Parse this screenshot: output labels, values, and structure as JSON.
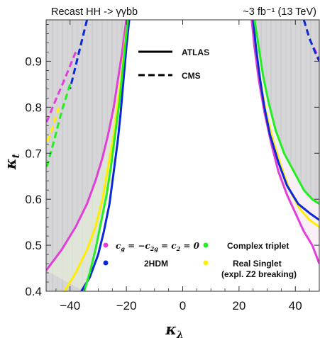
{
  "chart_data": {
    "type": "line",
    "title_left": "Recast HH -> γγbb",
    "title_right": "~3 fb⁻¹ (13 TeV)",
    "xlabel": "κ",
    "xlabel_sub": "λ",
    "ylabel": "κ",
    "ylabel_sub": "t",
    "xlim": [
      -48.5,
      48.5
    ],
    "ylim": [
      0.4,
      0.99
    ],
    "x_ticks": [
      -40,
      -20,
      0,
      20,
      40
    ],
    "x_tick_labels": [
      "−40",
      "−20",
      "0",
      "20",
      "40"
    ],
    "y_ticks": [
      0.4,
      0.5,
      0.6,
      0.7,
      0.8,
      0.9
    ],
    "y_tick_labels": [
      "0.4",
      "0.5",
      "0.6",
      "0.7",
      "0.8",
      "0.9"
    ],
    "grid": false,
    "line_styles": [
      {
        "label": "ATLAS",
        "dash": "solid"
      },
      {
        "label": "CMS",
        "dash": "dashed"
      }
    ],
    "legend_items": [
      {
        "label_parts": [
          "c",
          "g",
          " = −c",
          "2g",
          " = c",
          "2",
          " = 0"
        ],
        "color": "#e23fd8"
      },
      {
        "label": "Complex triplet",
        "color": "#22ee22"
      },
      {
        "label": "2HDM",
        "color": "#0a28d8"
      },
      {
        "label": "Real Singlet",
        "label2": "(expl. Z2 breaking)",
        "color": "#ffee00"
      }
    ],
    "series": [
      {
        "color": "#0a28d8",
        "experiment": "ATLAS",
        "side": "left",
        "points": [
          [
            -36,
            0.4
          ],
          [
            -33,
            0.43
          ],
          [
            -30,
            0.48
          ],
          [
            -28,
            0.53
          ],
          [
            -26,
            0.59
          ],
          [
            -24.5,
            0.66
          ],
          [
            -23,
            0.73
          ],
          [
            -22,
            0.79
          ],
          [
            -21,
            0.86
          ],
          [
            -20,
            0.93
          ],
          [
            -19,
            0.99
          ]
        ]
      },
      {
        "color": "#22ee22",
        "experiment": "ATLAS",
        "side": "left",
        "points": [
          [
            -35,
            0.4
          ],
          [
            -33,
            0.44
          ],
          [
            -31,
            0.49
          ],
          [
            -29,
            0.55
          ],
          [
            -27,
            0.61
          ],
          [
            -25.5,
            0.67
          ],
          [
            -24,
            0.74
          ],
          [
            -22.5,
            0.81
          ],
          [
            -21.5,
            0.87
          ],
          [
            -20.5,
            0.93
          ],
          [
            -19.5,
            0.99
          ]
        ]
      },
      {
        "color": "#ffee00",
        "experiment": "ATLAS",
        "side": "left",
        "points": [
          [
            -42,
            0.4
          ],
          [
            -38,
            0.44
          ],
          [
            -34,
            0.49
          ],
          [
            -31,
            0.54
          ],
          [
            -28.5,
            0.6
          ],
          [
            -26.5,
            0.67
          ],
          [
            -24.5,
            0.74
          ],
          [
            -23,
            0.81
          ],
          [
            -21.5,
            0.88
          ],
          [
            -20.5,
            0.94
          ],
          [
            -19.5,
            0.99
          ]
        ]
      },
      {
        "color": "#e23fd8",
        "experiment": "ATLAS",
        "side": "left",
        "points": [
          [
            -48.5,
            0.445
          ],
          [
            -43,
            0.49
          ],
          [
            -38,
            0.54
          ],
          [
            -34,
            0.59
          ],
          [
            -31,
            0.64
          ],
          [
            -28.5,
            0.69
          ],
          [
            -26.5,
            0.74
          ],
          [
            -24.5,
            0.8
          ],
          [
            -23,
            0.86
          ],
          [
            -21.5,
            0.92
          ],
          [
            -20,
            0.99
          ]
        ]
      },
      {
        "color": "#0a28d8",
        "experiment": "ATLAS",
        "side": "right",
        "points": [
          [
            25,
            0.99
          ],
          [
            26,
            0.93
          ],
          [
            27.5,
            0.86
          ],
          [
            29,
            0.8
          ],
          [
            31,
            0.74
          ],
          [
            34,
            0.68
          ],
          [
            37,
            0.63
          ],
          [
            41,
            0.59
          ],
          [
            45,
            0.57
          ],
          [
            48.5,
            0.555
          ]
        ]
      },
      {
        "color": "#22ee22",
        "experiment": "ATLAS",
        "side": "right",
        "points": [
          [
            25.5,
            0.99
          ],
          [
            27,
            0.93
          ],
          [
            28.5,
            0.87
          ],
          [
            30.5,
            0.81
          ],
          [
            33,
            0.75
          ],
          [
            36,
            0.7
          ],
          [
            39.5,
            0.66
          ],
          [
            43,
            0.62
          ],
          [
            46,
            0.6
          ],
          [
            48.5,
            0.59
          ]
        ]
      },
      {
        "color": "#ffee00",
        "experiment": "ATLAS",
        "side": "right",
        "points": [
          [
            25,
            0.99
          ],
          [
            26,
            0.93
          ],
          [
            27.5,
            0.86
          ],
          [
            29.5,
            0.79
          ],
          [
            32,
            0.73
          ],
          [
            35,
            0.67
          ],
          [
            38,
            0.62
          ],
          [
            41.5,
            0.58
          ],
          [
            45,
            0.555
          ],
          [
            48.5,
            0.54
          ]
        ]
      },
      {
        "color": "#e23fd8",
        "experiment": "ATLAS",
        "side": "right",
        "points": [
          [
            24.5,
            0.99
          ],
          [
            25.5,
            0.93
          ],
          [
            27,
            0.86
          ],
          [
            29,
            0.79
          ],
          [
            31.5,
            0.72
          ],
          [
            34,
            0.66
          ],
          [
            37,
            0.61
          ],
          [
            40,
            0.57
          ],
          [
            43,
            0.53
          ],
          [
            46,
            0.5
          ],
          [
            48.5,
            0.46
          ]
        ]
      },
      {
        "color": "#0a28d8",
        "experiment": "CMS",
        "side": "left",
        "points": [
          [
            -34,
            0.99
          ],
          [
            -36,
            0.94
          ],
          [
            -38,
            0.89
          ],
          [
            -40,
            0.84
          ]
        ]
      },
      {
        "color": "#22ee22",
        "experiment": "CMS",
        "side": "left",
        "points": [
          [
            -40,
            0.85
          ],
          [
            -43,
            0.79
          ],
          [
            -46,
            0.72
          ],
          [
            -48.5,
            0.665
          ]
        ]
      },
      {
        "color": "#e23fd8",
        "experiment": "CMS",
        "side": "left",
        "points": [
          [
            -38,
            0.92
          ],
          [
            -42,
            0.86
          ],
          [
            -45.5,
            0.81
          ],
          [
            -48.5,
            0.765
          ]
        ]
      },
      {
        "color": "#ffee00",
        "experiment": "CMS",
        "side": "left",
        "points": [
          [
            -44,
            0.8
          ],
          [
            -46.5,
            0.75
          ],
          [
            -48.5,
            0.72
          ]
        ]
      },
      {
        "color": "#0a28d8",
        "experiment": "CMS",
        "side": "right",
        "points": [
          [
            43,
            0.99
          ],
          [
            45,
            0.95
          ],
          [
            47,
            0.92
          ],
          [
            48.5,
            0.9
          ]
        ]
      },
      {
        "color": "#e23fd8",
        "experiment": "CMS",
        "side": "right",
        "points": [
          [
            46.5,
            0.93
          ],
          [
            48.5,
            0.905
          ]
        ]
      }
    ]
  }
}
